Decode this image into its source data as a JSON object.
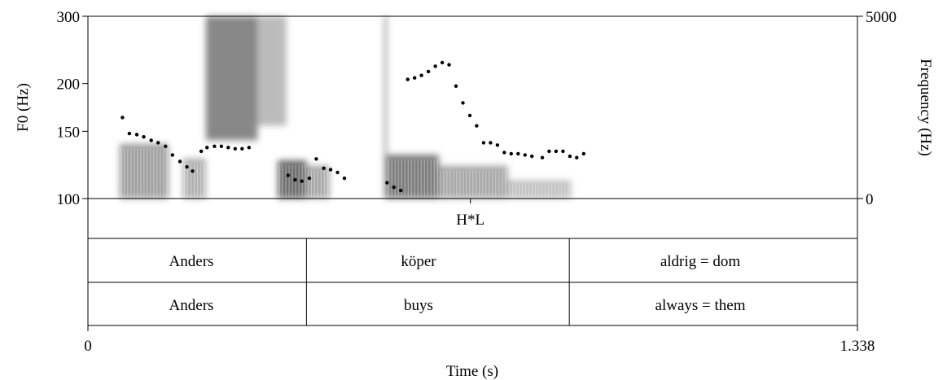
{
  "chart_data": {
    "type": "scatter",
    "title": "",
    "x_axis": {
      "label": "Time (s)",
      "range": [
        0,
        1.338
      ],
      "ticks": [
        "0",
        "1.338"
      ]
    },
    "y_axis_left": {
      "label": "F0 (Hz)",
      "scale": "log",
      "range": [
        100,
        300
      ],
      "ticks": [
        100,
        150,
        200,
        300
      ]
    },
    "y_axis_right": {
      "label": "Frequency (Hz)",
      "range": [
        0,
        5000
      ],
      "ticks": [
        "0",
        "5000"
      ]
    },
    "grid": false,
    "legend": "none",
    "colors": {
      "pitch_points": "#000000",
      "spectrogram": "#555555"
    },
    "spectrogram_regions": [
      {
        "t": [
          0.055,
          0.14
        ],
        "f": [
          0,
          1500
        ],
        "intensity": 0.55
      },
      {
        "t": [
          0.165,
          0.205
        ],
        "f": [
          0,
          1100
        ],
        "intensity": 0.45
      },
      {
        "t": [
          0.205,
          0.295
        ],
        "f": [
          1600,
          5000
        ],
        "intensity": 0.7
      },
      {
        "t": [
          0.295,
          0.345
        ],
        "f": [
          2000,
          5000
        ],
        "intensity": 0.4
      },
      {
        "t": [
          0.33,
          0.38
        ],
        "f": [
          0,
          1050
        ],
        "intensity": 0.85
      },
      {
        "t": [
          0.38,
          0.42
        ],
        "f": [
          0,
          900
        ],
        "intensity": 0.5
      },
      {
        "t": [
          0.52,
          0.61
        ],
        "f": [
          0,
          1200
        ],
        "intensity": 0.75
      },
      {
        "t": [
          0.61,
          0.73
        ],
        "f": [
          0,
          900
        ],
        "intensity": 0.5
      },
      {
        "t": [
          0.73,
          0.84
        ],
        "f": [
          0,
          500
        ],
        "intensity": 0.35
      },
      {
        "t": [
          0.515,
          0.52
        ],
        "f": [
          0,
          5000
        ],
        "intensity": 0.6
      }
    ],
    "series": [
      {
        "x": [
          0.06,
          0.072,
          0.085,
          0.097,
          0.11,
          0.122,
          0.135,
          0.147,
          0.16,
          0.172,
          0.182,
          0.197,
          0.207,
          0.22,
          0.232,
          0.244,
          0.256,
          0.268,
          0.28,
          0.348,
          0.36,
          0.372,
          0.385,
          0.397,
          0.41,
          0.422,
          0.434,
          0.446,
          0.52,
          0.532,
          0.544,
          0.556,
          0.568,
          0.58,
          0.592,
          0.604,
          0.616,
          0.628,
          0.64,
          0.652,
          0.664,
          0.676,
          0.688,
          0.7,
          0.712,
          0.724,
          0.736,
          0.748,
          0.76,
          0.772,
          0.79,
          0.802,
          0.814,
          0.826,
          0.838,
          0.85,
          0.862
        ],
        "y": [
          163,
          148,
          147,
          145,
          142,
          140,
          137,
          130,
          125,
          121,
          118,
          133,
          136,
          137,
          137,
          136,
          135,
          135,
          136,
          115,
          112,
          111,
          113,
          127,
          120,
          119,
          117,
          113,
          110,
          107,
          105,
          205,
          207,
          210,
          215,
          222,
          227,
          224,
          197,
          178,
          165,
          155,
          140,
          140,
          138,
          132,
          131,
          131,
          130,
          129,
          128,
          133,
          133,
          133,
          129,
          128,
          131
        ]
      }
    ]
  },
  "tiers": {
    "tone": {
      "label": "H*L",
      "time": 0.665
    },
    "boundaries": [
      0.38,
      0.837
    ],
    "swedish": [
      "Anders",
      "köper",
      "aldrig = dom"
    ],
    "english": [
      "Anders",
      "buys",
      "always = them"
    ]
  }
}
